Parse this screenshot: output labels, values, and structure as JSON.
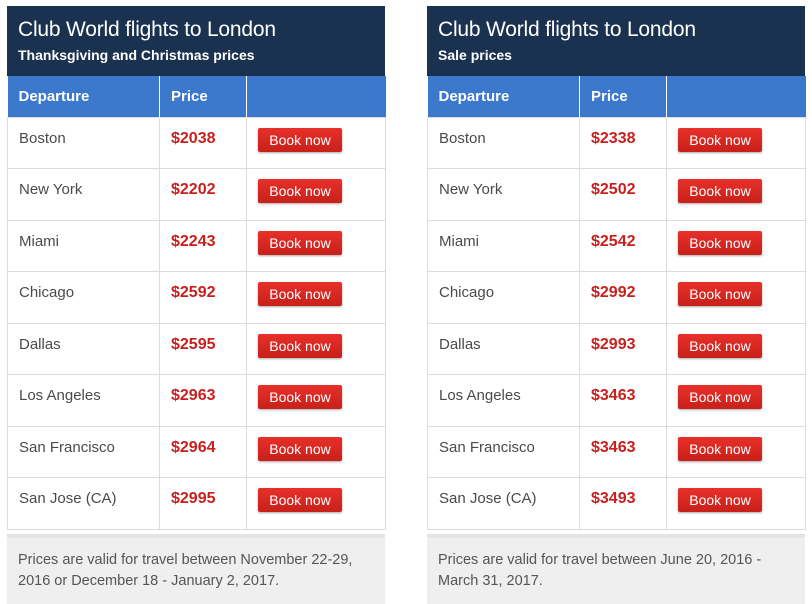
{
  "colors": {
    "header_bg": "#1b3150",
    "table_header_bg": "#3c78cc",
    "price_text": "#c8201d",
    "button_bg": "#d42620",
    "footer_bg": "#efefef"
  },
  "panels": [
    {
      "title": "Club World flights to London",
      "subtitle": "Thanksgiving and Christmas prices",
      "columns": {
        "departure": "Departure",
        "price": "Price",
        "action": ""
      },
      "rows": [
        {
          "city": "Boston",
          "price": "$2038",
          "button": "Book now"
        },
        {
          "city": "New York",
          "price": "$2202",
          "button": "Book now"
        },
        {
          "city": "Miami",
          "price": "$2243",
          "button": "Book now"
        },
        {
          "city": "Chicago",
          "price": "$2592",
          "button": "Book now"
        },
        {
          "city": "Dallas",
          "price": "$2595",
          "button": "Book now"
        },
        {
          "city": "Los Angeles",
          "price": "$2963",
          "button": "Book now"
        },
        {
          "city": "San Francisco",
          "price": "$2964",
          "button": "Book now"
        },
        {
          "city": "San Jose (CA)",
          "price": "$2995",
          "button": "Book now"
        }
      ],
      "footer": "Prices are valid for travel between November 22-29, 2016 or December 18 - January 2, 2017."
    },
    {
      "title": "Club World flights to London",
      "subtitle": "Sale prices",
      "columns": {
        "departure": "Departure",
        "price": "Price",
        "action": ""
      },
      "rows": [
        {
          "city": "Boston",
          "price": "$2338",
          "button": "Book now"
        },
        {
          "city": "New York",
          "price": "$2502",
          "button": "Book now"
        },
        {
          "city": "Miami",
          "price": "$2542",
          "button": "Book now"
        },
        {
          "city": "Chicago",
          "price": "$2992",
          "button": "Book now"
        },
        {
          "city": "Dallas",
          "price": "$2993",
          "button": "Book now"
        },
        {
          "city": "Los Angeles",
          "price": "$3463",
          "button": "Book now"
        },
        {
          "city": "San Francisco",
          "price": "$3463",
          "button": "Book now"
        },
        {
          "city": "San Jose (CA)",
          "price": "$3493",
          "button": "Book now"
        }
      ],
      "footer": "Prices are valid for travel between June 20, 2016 - March 31, 2017."
    }
  ]
}
